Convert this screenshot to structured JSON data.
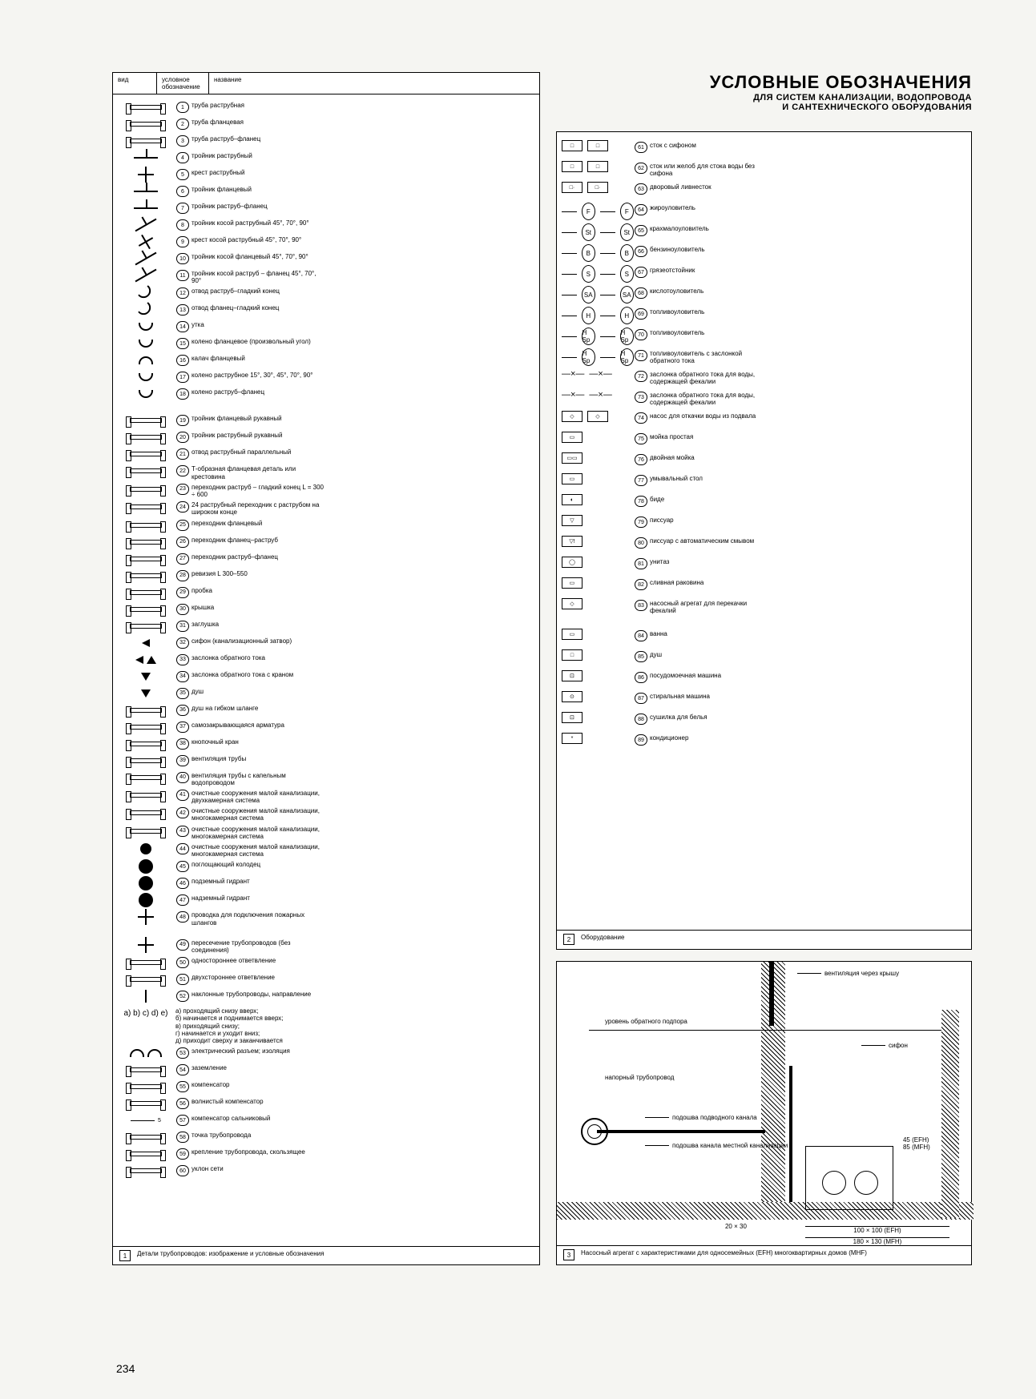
{
  "page_number": "234",
  "title": "УСЛОВНЫЕ ОБОЗНАЧЕНИЯ",
  "subtitle1": "ДЛЯ СИСТЕМ КАНАЛИЗАЦИИ, ВОДОПРОВОДА",
  "subtitle2": "И САНТЕХНИЧЕСКОГО ОБОРУДОВАНИЯ",
  "table_head": {
    "vid": "вид",
    "usl": "условное обозначение",
    "naz": "название"
  },
  "panel1_footer": "Детали трубопроводов: изображение и условные обозначения",
  "panel2_footer": "Оборудование",
  "panel3_footer": "Насосный агрегат с характеристиками для односемейных (EFH) многоквартирных домов (MHF)",
  "panel1_items": [
    {
      "n": "1",
      "t": "труба раструбная"
    },
    {
      "n": "2",
      "t": "труба фланцевая"
    },
    {
      "n": "3",
      "t": "труба раструб–фланец"
    },
    {
      "n": "4",
      "t": "тройник раструбный"
    },
    {
      "n": "5",
      "t": "крест раструбный"
    },
    {
      "n": "6",
      "t": "тройник фланцевый"
    },
    {
      "n": "7",
      "t": "тройник раструб–фланец"
    },
    {
      "n": "8",
      "t": "тройник косой раструбный 45°, 70°, 90°"
    },
    {
      "n": "9",
      "t": "крест косой раструбный 45°, 70°, 90°"
    },
    {
      "n": "10",
      "t": "тройник косой фланцевый 45°, 70°, 90°"
    },
    {
      "n": "11",
      "t": "тройник косой раструб – фланец 45°, 70°, 90°"
    },
    {
      "n": "12",
      "t": "отвод раструб–гладкий конец"
    },
    {
      "n": "13",
      "t": "отвод фланец–гладкий конец"
    },
    {
      "n": "14",
      "t": "утка"
    },
    {
      "n": "15",
      "t": "колено фланцевое (произвольный угол)"
    },
    {
      "n": "16",
      "t": "калач фланцевый"
    },
    {
      "n": "17",
      "t": "колено раструбное 15°, 30°, 45°, 70°, 90°"
    },
    {
      "n": "18",
      "t": "колено раструб–фланец"
    },
    {
      "n": "",
      "t": "",
      "gap": true
    },
    {
      "n": "19",
      "t": "тройник фланцевый рукавный"
    },
    {
      "n": "20",
      "t": "тройник раструбный рукавный"
    },
    {
      "n": "21",
      "t": "отвод раструбный параллельный"
    },
    {
      "n": "22",
      "t": "Т-образная фланцевая деталь или крестовина"
    },
    {
      "n": "23",
      "t": "переходник раструб – гладкий конец L = 300 ÷ 600"
    },
    {
      "n": "24",
      "t": "24 раструбный переходник с раструбом на широком конце"
    },
    {
      "n": "25",
      "t": "переходник фланцевый"
    },
    {
      "n": "26",
      "t": "переходник фланец–раструб"
    },
    {
      "n": "27",
      "t": "переходник раструб–фланец"
    },
    {
      "n": "28",
      "t": "ревизия L 300–550"
    },
    {
      "n": "29",
      "t": "пробка"
    },
    {
      "n": "30",
      "t": "крышка"
    },
    {
      "n": "31",
      "t": "заглушка"
    },
    {
      "n": "32",
      "t": "сифон (канализационный затвор)"
    },
    {
      "n": "33",
      "t": "заслонка обратного тока"
    },
    {
      "n": "34",
      "t": "заслонка обратного тока с краном"
    },
    {
      "n": "35",
      "t": "душ"
    },
    {
      "n": "36",
      "t": "душ на гибком шланге"
    },
    {
      "n": "37",
      "t": "самозакрывающаяся арматура"
    },
    {
      "n": "38",
      "t": "кнопочный кран"
    },
    {
      "n": "39",
      "t": "вентиляция трубы"
    },
    {
      "n": "40",
      "t": "вентиляция трубы с капельным водопроводом"
    },
    {
      "n": "41",
      "t": "очистные сооружения малой канализации, двухкамерная система"
    },
    {
      "n": "42",
      "t": "очистные сооружения малой канализации, многокамерная система"
    },
    {
      "n": "43",
      "t": "очистные сооружения малой канализации, многокамерная система"
    },
    {
      "n": "44",
      "t": "очистные сооружения малой канализации, многокамерная система"
    },
    {
      "n": "45",
      "t": "поглощающий колодец"
    },
    {
      "n": "46",
      "t": "подземный гидрант"
    },
    {
      "n": "47",
      "t": "надземный гидрант"
    },
    {
      "n": "48",
      "t": "проводка для подключения пожарных шлангов"
    },
    {
      "n": "",
      "t": "",
      "gap": true
    },
    {
      "n": "49",
      "t": "пересечение трубопроводов (без соединения)"
    },
    {
      "n": "50",
      "t": "одностороннее ответвление"
    },
    {
      "n": "51",
      "t": "двухстороннее ответвление"
    },
    {
      "n": "52",
      "t": "наклонные трубопроводы, направление"
    },
    {
      "n": "",
      "t": "а) проходящий снизу вверх;\nб) начинается и поднимается вверх;\nв) приходящий снизу;\nг) начинается и уходит вниз;\nд) приходит сверху и заканчивается",
      "sub": true
    },
    {
      "n": "53",
      "t": "электрический разъем; изоляция"
    },
    {
      "n": "54",
      "t": "заземление"
    },
    {
      "n": "55",
      "t": "компенсатор"
    },
    {
      "n": "56",
      "t": "волнистый компенсатор"
    },
    {
      "n": "57",
      "t": "компенсатор сальниковый"
    },
    {
      "n": "58",
      "t": "точка трубопровода"
    },
    {
      "n": "59",
      "t": "крепление трубопровода, скользящее"
    },
    {
      "n": "60",
      "t": "уклон сети"
    }
  ],
  "panel2_items": [
    {
      "n": "61",
      "t": "сток с сифоном",
      "s": [
        "□",
        "□"
      ]
    },
    {
      "n": "62",
      "t": "сток или желоб для стока воды без сифона",
      "s": [
        "□",
        "□"
      ]
    },
    {
      "n": "63",
      "t": "дворовый ливнесток",
      "s": [
        "□·",
        "□·"
      ]
    },
    {
      "n": "64",
      "t": "жироуловитель",
      "s": [
        "F",
        "F"
      ]
    },
    {
      "n": "65",
      "t": "крахмалоуловитель",
      "s": [
        "St",
        "St"
      ]
    },
    {
      "n": "66",
      "t": "бензиноуловитель",
      "s": [
        "B",
        "B"
      ]
    },
    {
      "n": "67",
      "t": "грязеотстойник",
      "s": [
        "S",
        "S"
      ]
    },
    {
      "n": "68",
      "t": "кислотоуловитель",
      "s": [
        "SA",
        "SA"
      ]
    },
    {
      "n": "69",
      "t": "топливоуловитель",
      "s": [
        "H",
        "H"
      ]
    },
    {
      "n": "70",
      "t": "топливоуловитель",
      "s": [
        "H Sp",
        "H Sp"
      ]
    },
    {
      "n": "71",
      "t": "топливоуловитель с заслонкой обратного тока",
      "s": [
        "H Sp",
        "H Sp"
      ]
    },
    {
      "n": "72",
      "t": "заслонка обратного тока для воды, содержащей фекалии",
      "s": [
        "—×—",
        "—×—"
      ]
    },
    {
      "n": "73",
      "t": "заслонка обратного тока для воды, содержащей фекалии",
      "s": [
        "—×—",
        "—×—"
      ]
    },
    {
      "n": "74",
      "t": "насос для откачки воды из подвала",
      "s": [
        "◇",
        "◇"
      ]
    },
    {
      "n": "75",
      "t": "мойка простая",
      "s": [
        "▭"
      ]
    },
    {
      "n": "76",
      "t": "двойная мойка",
      "s": [
        "▭▭"
      ]
    },
    {
      "n": "77",
      "t": "умывальный стол",
      "s": [
        "▭"
      ]
    },
    {
      "n": "78",
      "t": "биде",
      "s": [
        "◐"
      ]
    },
    {
      "n": "79",
      "t": "писсуар",
      "s": [
        "▽"
      ]
    },
    {
      "n": "80",
      "t": "писсуар с автоматическим смывом",
      "s": [
        "▽!"
      ]
    },
    {
      "n": "81",
      "t": "унитаз",
      "s": [
        "◯"
      ]
    },
    {
      "n": "82",
      "t": "сливная раковина",
      "s": [
        "▭"
      ]
    },
    {
      "n": "83",
      "t": "насосный агрегат для перекачки фекалий",
      "s": [
        "◇"
      ]
    },
    {
      "n": "",
      "t": "",
      "gap": true
    },
    {
      "n": "84",
      "t": "ванна",
      "s": [
        "▭"
      ]
    },
    {
      "n": "85",
      "t": "душ",
      "s": [
        "□"
      ]
    },
    {
      "n": "86",
      "t": "посудомоечная машина",
      "s": [
        "⊡"
      ]
    },
    {
      "n": "87",
      "t": "стиральная машина",
      "s": [
        "⊙"
      ]
    },
    {
      "n": "88",
      "t": "сушилка для белья",
      "s": [
        "⊡"
      ]
    },
    {
      "n": "89",
      "t": "кондиционер",
      "s": [
        "*"
      ]
    }
  ],
  "panel3": {
    "labels": {
      "l1": "вентиляция через крышу",
      "l2": "уровень обратного подпора",
      "l3": "сифон",
      "l4": "напорный трубопровод",
      "l5": "подошва подводного канала",
      "l6": "подошва канала местной канализации",
      "d1": "20 × 30",
      "d2": "45 (EFH)\n85 (MFH)",
      "d3": "100 × 100 (EFH)",
      "d4": "180 × 130 (MFH)"
    }
  }
}
